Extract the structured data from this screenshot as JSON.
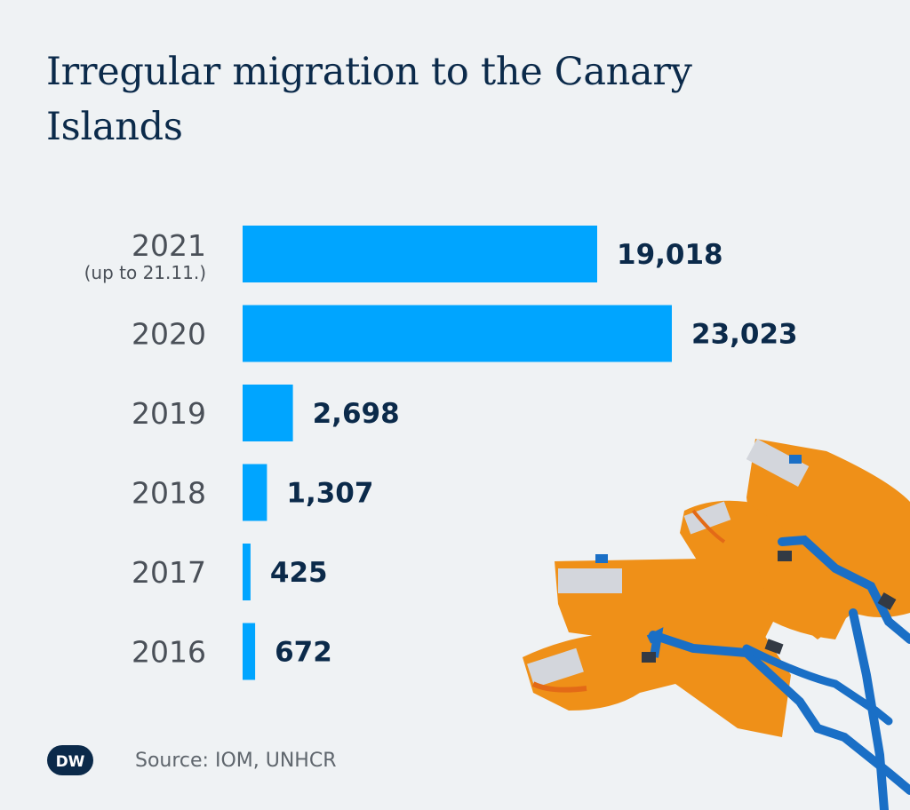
{
  "title": "Irregular migration to the Canary Islands",
  "source": "Source: IOM, UNHCR",
  "logo_text": "DW",
  "colors": {
    "background": "#eff2f4",
    "bar": "#00a5ff",
    "title": "#0b2a4a",
    "value_text": "#0b2a4a",
    "label_text": "#4a5058",
    "life_vest": "#ef9018",
    "strap": "#1a6fc6"
  },
  "chart_data": {
    "type": "bar",
    "orientation": "horizontal",
    "title": "Irregular migration to the Canary Islands",
    "categories": [
      "2021",
      "2020",
      "2019",
      "2018",
      "2017",
      "2016"
    ],
    "category_notes": [
      "(up to 21.11.)",
      "",
      "",
      "",
      "",
      ""
    ],
    "values": [
      19018,
      23023,
      2698,
      1307,
      425,
      672
    ],
    "value_labels": [
      "19,018",
      "23,023",
      "2,698",
      "1,307",
      "425",
      "672"
    ],
    "xlabel": "",
    "ylabel": "",
    "xlim": [
      0,
      23023
    ],
    "grid": false,
    "legend": "none"
  }
}
